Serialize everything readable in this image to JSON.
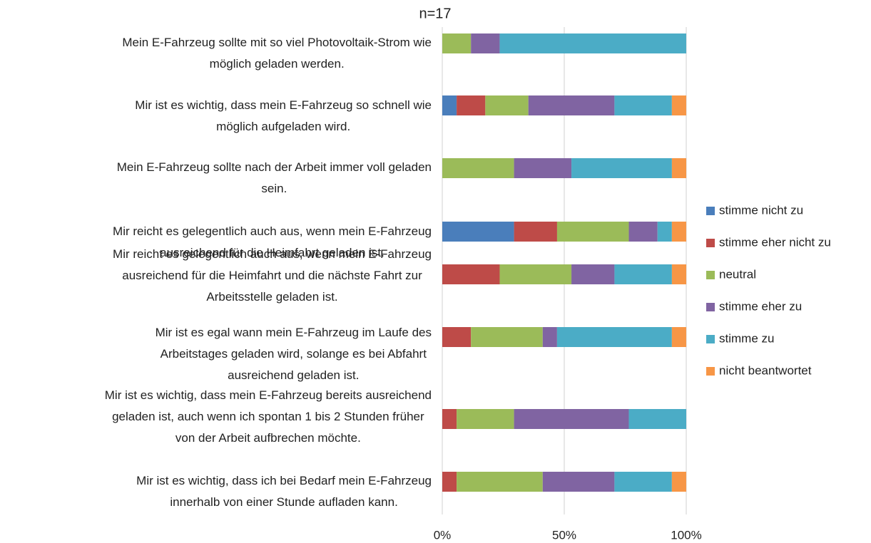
{
  "chart_data": {
    "type": "stacked_bar_horizontal",
    "title": "n=17",
    "categories": [
      "Mein E-Fahrzeug sollte mit so viel Photovoltaik-Strom wie\nmöglich geladen werden.",
      "Mir ist es wichtig, dass mein E-Fahrzeug so schnell wie\nmöglich aufgeladen wird.",
      "Mein E-Fahrzeug sollte nach der Arbeit immer voll geladen\nsein.",
      "Mir reicht es gelegentlich auch aus, wenn mein E-Fahrzeug\nausreichend für die Heimfahrt geladen ist.",
      "Mir reicht es gelegentlich auch aus, wenn mein E-Fahrzeug\nausreichend für die Heimfahrt und die nächste Fahrt zur\nArbeitsstelle geladen ist.",
      "Mir ist es egal wann mein E-Fahrzeug im Laufe des\nArbeitstages geladen wird, solange es bei Abfahrt\nausreichend geladen ist.",
      "Mir ist es wichtig, dass mein E-Fahrzeug bereits ausreichend\ngeladen ist, auch wenn ich spontan 1 bis 2 Stunden früher\nvon der Arbeit aufbrechen möchte.",
      "Mir ist es wichtig, dass ich bei Bedarf mein E-Fahrzeug\ninnerhalb von einer Stunde aufladen kann."
    ],
    "series": [
      {
        "name": "stimme nicht zu",
        "color": "#4a7ebb",
        "values": [
          0,
          5.88,
          0,
          29.41,
          0,
          0,
          0,
          0
        ]
      },
      {
        "name": "stimme eher nicht zu",
        "color": "#be4b48",
        "values": [
          0,
          11.76,
          0,
          17.65,
          23.53,
          11.76,
          5.88,
          5.88
        ]
      },
      {
        "name": "neutral",
        "color": "#9bbb59",
        "values": [
          11.76,
          17.65,
          29.41,
          29.41,
          29.41,
          29.41,
          23.53,
          35.29
        ]
      },
      {
        "name": "stimme eher zu",
        "color": "#8064a2",
        "values": [
          11.76,
          35.29,
          23.53,
          11.76,
          17.65,
          5.88,
          47.06,
          29.41
        ]
      },
      {
        "name": "stimme zu",
        "color": "#4bacc6",
        "values": [
          76.47,
          23.53,
          41.18,
          5.88,
          23.53,
          47.06,
          23.53,
          23.53
        ]
      },
      {
        "name": "nicht beantwortet",
        "color": "#f79646",
        "values": [
          0,
          5.88,
          5.88,
          5.88,
          5.88,
          5.88,
          0,
          5.88
        ]
      }
    ],
    "xlim": [
      0,
      100
    ],
    "xticks": [
      {
        "value": 0,
        "label": "0%"
      },
      {
        "value": 50,
        "label": "50%"
      },
      {
        "value": 100,
        "label": "100%"
      }
    ],
    "grid": true,
    "legend": "right"
  }
}
